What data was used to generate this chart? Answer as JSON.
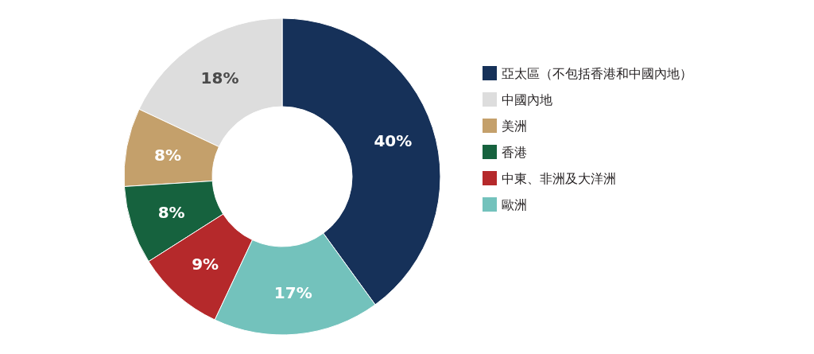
{
  "chart_data": {
    "type": "donut",
    "categories": [
      "亞太區（不包括香港和中國內地）",
      "中國內地",
      "美洲",
      "香港",
      "中東、非洲及大洋洲",
      "歐洲"
    ],
    "values": [
      40,
      18,
      8,
      8,
      9,
      17
    ],
    "colors": [
      "#163159",
      "#dddddd",
      "#c4a06b",
      "#16623e",
      "#b5292b",
      "#73c2bc"
    ],
    "value_labels": [
      "40%",
      "18%",
      "8%",
      "8%",
      "9%",
      "17%"
    ],
    "legend": "right"
  }
}
